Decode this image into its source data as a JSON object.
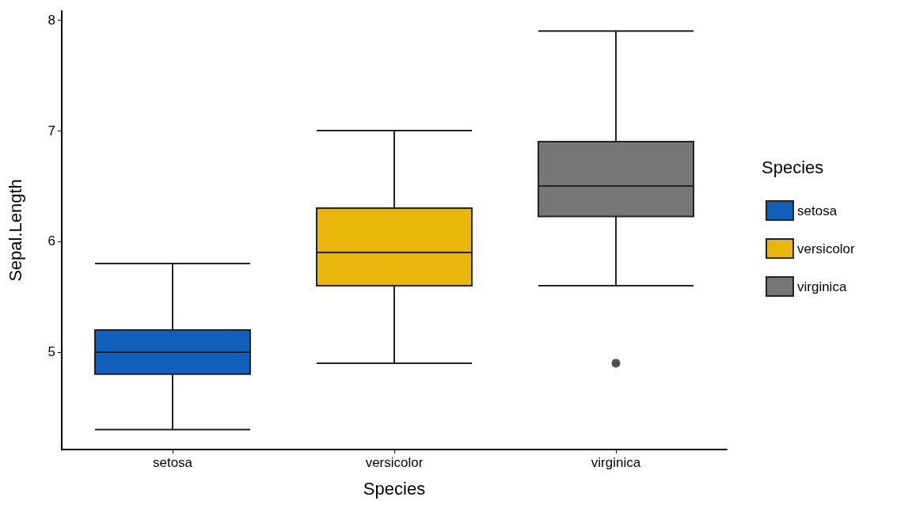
{
  "chart_data": {
    "type": "box",
    "xlabel": "Species",
    "ylabel": "Sepal.Length",
    "legend_title": "Species",
    "categories": [
      "setosa",
      "versicolor",
      "virginica"
    ],
    "ylim": [
      4.12,
      8.08
    ],
    "yticks": [
      5,
      6,
      7,
      8
    ],
    "grid": false,
    "legend": "right",
    "series": [
      {
        "name": "setosa",
        "color": "#1060bb",
        "boxes": [
          {
            "low": 4.3,
            "q1": 4.8,
            "median": 5.0,
            "q3": 5.2,
            "high": 5.8
          },
          null,
          null
        ]
      },
      {
        "name": "versicolor",
        "color": "#e9b70b",
        "boxes": [
          null,
          {
            "low": 4.9,
            "q1": 5.6,
            "median": 5.9,
            "q3": 6.3,
            "high": 7.0
          },
          null
        ]
      },
      {
        "name": "virginica",
        "color": "#767676",
        "boxes": [
          null,
          null,
          {
            "low": 5.6,
            "q1": 6.225,
            "median": 6.5,
            "q3": 6.9,
            "high": 7.9,
            "outliers": [
              4.9
            ]
          }
        ]
      }
    ]
  }
}
